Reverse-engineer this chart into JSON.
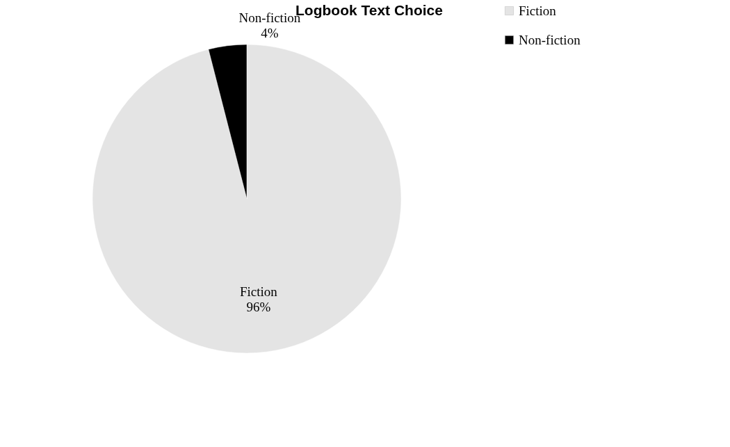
{
  "chart_data": {
    "type": "pie",
    "title": "Logbook Text Choice",
    "categories": [
      "Fiction",
      "Non-fiction"
    ],
    "values": [
      96,
      4
    ],
    "colors": [
      "#e4e4e4",
      "#000000"
    ],
    "value_labels": [
      "Fiction 96%",
      "Non-fiction 4%"
    ],
    "legend": "right"
  }
}
